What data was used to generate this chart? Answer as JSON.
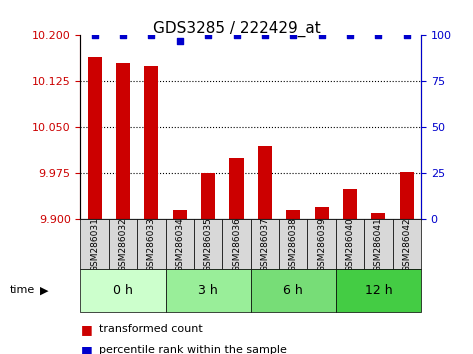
{
  "title": "GDS3285 / 222429_at",
  "samples": [
    "GSM286031",
    "GSM286032",
    "GSM286033",
    "GSM286034",
    "GSM286035",
    "GSM286036",
    "GSM286037",
    "GSM286038",
    "GSM286039",
    "GSM286040",
    "GSM286041",
    "GSM286042"
  ],
  "bar_values": [
    10.165,
    10.155,
    10.15,
    9.915,
    9.975,
    10.0,
    10.02,
    9.915,
    9.92,
    9.95,
    9.91,
    9.978
  ],
  "percentile_values": [
    100,
    100,
    100,
    97,
    100,
    100,
    100,
    100,
    100,
    100,
    100,
    100
  ],
  "bar_color": "#cc0000",
  "percentile_color": "#0000cc",
  "ylim_left": [
    9.9,
    10.2
  ],
  "ylim_right": [
    0,
    100
  ],
  "yticks_left": [
    9.9,
    9.975,
    10.05,
    10.125,
    10.2
  ],
  "yticks_right": [
    0,
    25,
    50,
    75,
    100
  ],
  "groups": [
    {
      "label": "0 h",
      "start": 0,
      "end": 3,
      "color": "#ccffcc"
    },
    {
      "label": "3 h",
      "start": 3,
      "end": 6,
      "color": "#99ee99"
    },
    {
      "label": "6 h",
      "start": 6,
      "end": 9,
      "color": "#66dd66"
    },
    {
      "label": "12 h",
      "start": 9,
      "end": 12,
      "color": "#33cc33"
    }
  ],
  "time_label": "time",
  "legend_bar_label": "transformed count",
  "legend_pct_label": "percentile rank within the sample",
  "title_fontsize": 11,
  "axis_fontsize": 8,
  "tick_fontsize": 8,
  "grid_color": "#888888"
}
